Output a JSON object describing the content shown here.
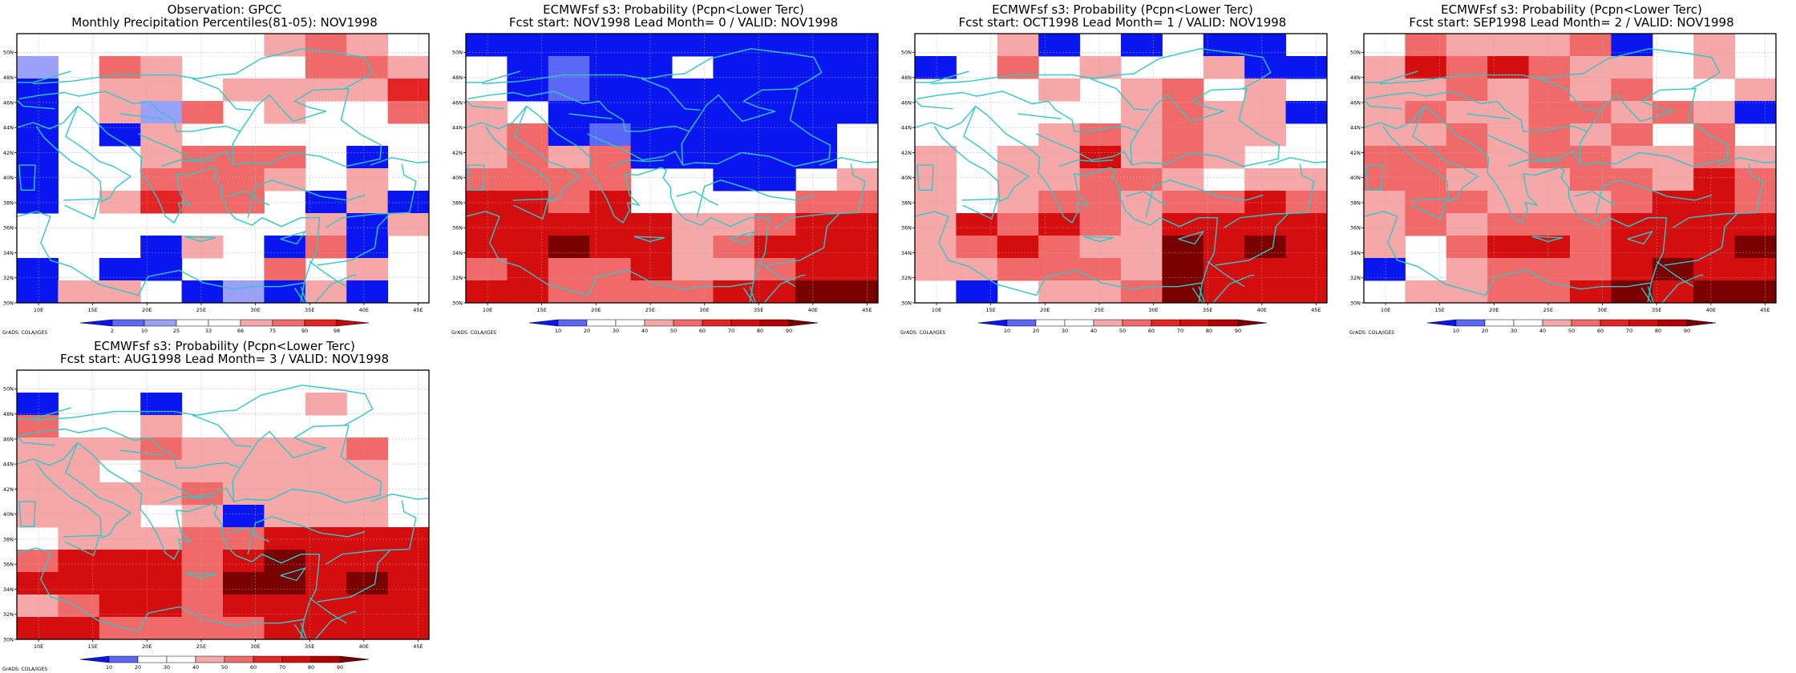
{
  "panels": [
    {
      "title_line1": "Observation: GPCC",
      "title_line2": "Monthly Precipitation Percentiles(81-05): NOV1998",
      "colorbar": {
        "labels": [
          "2",
          "10",
          "25",
          "33",
          "66",
          "75",
          "90",
          "98"
        ],
        "colors": [
          "#0a16f0",
          "#5b68f5",
          "#9aa0f7",
          "#ffffff",
          "#ffffff",
          "#f6a8a8",
          "#f16a6a",
          "#e42424",
          "#c40a0a"
        ]
      },
      "grid": [
        "0000002320",
        "1032000332",
        "-022022224",
        "-021302003",
        "-0-2000000",
        "-0023330-0",
        "-003332020",
        "-024330-2-",
        "00000002-2",
        "000-20-3-0",
        "-0--003020",
        "-220-1-2-0"
      ]
    },
    {
      "title_line1": "ECMWFsf s3: Probability (Pcpn<Lower Terc)",
      "title_line2": "Fcst start: NOV1998  Lead Month= 0 / VALID: NOV1998",
      "colorbar": {
        "labels": [
          "10",
          "20",
          "30",
          "40",
          "50",
          "60",
          "70",
          "80",
          "90"
        ],
        "colors": [
          "#0a16f0",
          "#5b68f5",
          "#ffffff",
          "#ffffff",
          "#f6a8a8",
          "#f16a6a",
          "#e42424",
          "#d40e0e",
          "#b30000",
          "#7a0000"
        ]
      },
      "grid": [
        "----------",
        "0-1--0----",
        "0-1-------",
        "20--------",
        "23-1-----0",
        "2323-----0",
        "333300--02",
        "4434000033",
        "4444422344",
        "4454423444",
        "3433422344",
        "4433334455"
      ]
    },
    {
      "title_line1": "ECMWFsf s3: Probability (Pcpn<Lower Terc)",
      "title_line2": "Fcst start: OCT1998  Lead Month= 1 / VALID: NOV1998",
      "colorbar": {
        "labels": [
          "10",
          "20",
          "30",
          "40",
          "50",
          "60",
          "70",
          "80",
          "90"
        ],
        "colors": [
          "#0a16f0",
          "#5b68f5",
          "#ffffff",
          "#ffffff",
          "#f6a8a8",
          "#f16a6a",
          "#e42424",
          "#d40e0e",
          "#b30000",
          "#7a0000"
        ]
      },
      "grid": [
        "002-0-0--0",
        "-0302002--",
        "0002023020",
        "000002322-",
        "0002323220",
        "2022423200",
        "2022332022",
        "2023323343",
        "2434324444",
        "2343225454",
        "2233325444",
        "0-02235444"
      ]
    },
    {
      "title_line1": "ECMWFsf s3: Probability (Pcpn<Lower Terc)",
      "title_line2": "Fcst start: SEP1998  Lead Month= 2 / VALID: NOV1998",
      "colorbar": {
        "labels": [
          "10",
          "20",
          "30",
          "40",
          "50",
          "60",
          "70",
          "80",
          "90"
        ],
        "colors": [
          "#0a16f0",
          "#5b68f5",
          "#ffffff",
          "#ffffff",
          "#f6a8a8",
          "#f16a6a",
          "#e42424",
          "#d40e0e",
          "#b30000",
          "#7a0000"
        ]
      },
      "grid": [
        "032223-020",
        "2434322020",
        "2232323002",
        "232233232-",
        "2232323030",
        "3332332232",
        "3322233243",
        "2332223443",
        "2323334444",
        "2034434445",
        "-023334544",
        "0223345455"
      ]
    },
    {
      "title_line1": "ECMWFsf s3: Probability (Pcpn<Lower Terc)",
      "title_line2": "Fcst start: AUG1998  Lead Month= 3 / VALID: NOV1998",
      "colorbar": {
        "labels": [
          "10",
          "20",
          "30",
          "40",
          "50",
          "60",
          "70",
          "80",
          "90"
        ],
        "colors": [
          "#0a16f0",
          "#5b68f5",
          "#ffffff",
          "#ffffff",
          "#f6a8a8",
          "#f16a6a",
          "#e42424",
          "#d40e0e",
          "#b30000",
          "#7a0000"
        ]
      },
      "grid": [
        "0000000000",
        "-00-000200",
        "3002000000",
        "2223222230",
        "2202222220",
        "2222322220",
        "22202-2220",
        "0222334444",
        "3444345444",
        "4444355454",
        "2344344444",
        "4433334444"
      ]
    }
  ],
  "axes": {
    "x_ticks": [
      "10E",
      "15E",
      "20E",
      "25E",
      "30E",
      "35E",
      "40E",
      "45E"
    ],
    "y_ticks": [
      "30N",
      "32N",
      "34N",
      "36N",
      "38N",
      "40N",
      "42N",
      "44N",
      "46N",
      "48N",
      "50N"
    ],
    "lon_range": [
      8,
      46
    ],
    "lat_range": [
      30,
      51.5
    ]
  },
  "credit": "GrADS: COLA/IGES",
  "colors": {
    "coastline": "#2ec8c8",
    "grid_line": "#b0b0b0",
    "frame": "#000000"
  }
}
